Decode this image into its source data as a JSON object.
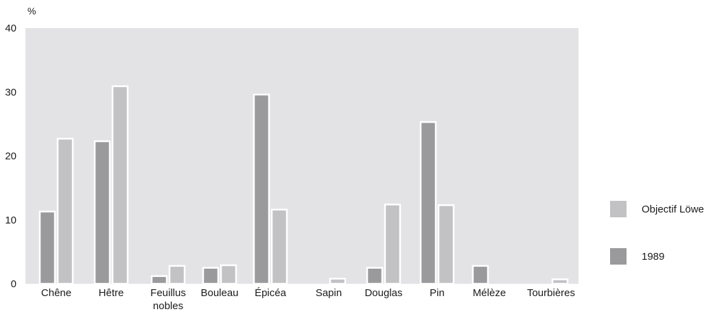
{
  "chart_data": {
    "type": "bar",
    "unit_label": "%",
    "categories": [
      [
        "Chêne"
      ],
      [
        "Hêtre"
      ],
      [
        "Feuillus",
        "nobles"
      ],
      [
        "Bouleau"
      ],
      [
        "Épicéa"
      ],
      [
        "Sapin"
      ],
      [
        "Douglas"
      ],
      [
        "Pin"
      ],
      [
        "Mélèze"
      ],
      [
        "Tourbières"
      ]
    ],
    "series": [
      {
        "name": "1989",
        "color": "#9a9a9d",
        "values": [
          11.3,
          22.3,
          1.2,
          2.5,
          29.6,
          0,
          2.5,
          25.3,
          2.8,
          0
        ]
      },
      {
        "name": "Objectif Löwe",
        "color": "#c2c2c5",
        "values": [
          22.7,
          30.9,
          2.8,
          2.9,
          11.6,
          0.8,
          12.4,
          12.3,
          0,
          0.7
        ]
      }
    ],
    "ylim": [
      0,
      40
    ],
    "yticks": [
      0,
      10,
      20,
      30,
      40
    ],
    "grid": false,
    "legend": {
      "position": "right",
      "entries": [
        {
          "label": "Objectif Löwe",
          "color": "#c2c2c5"
        },
        {
          "label": "1989",
          "color": "#9a9a9d"
        }
      ]
    },
    "plot_background": "#e3e3e5"
  }
}
